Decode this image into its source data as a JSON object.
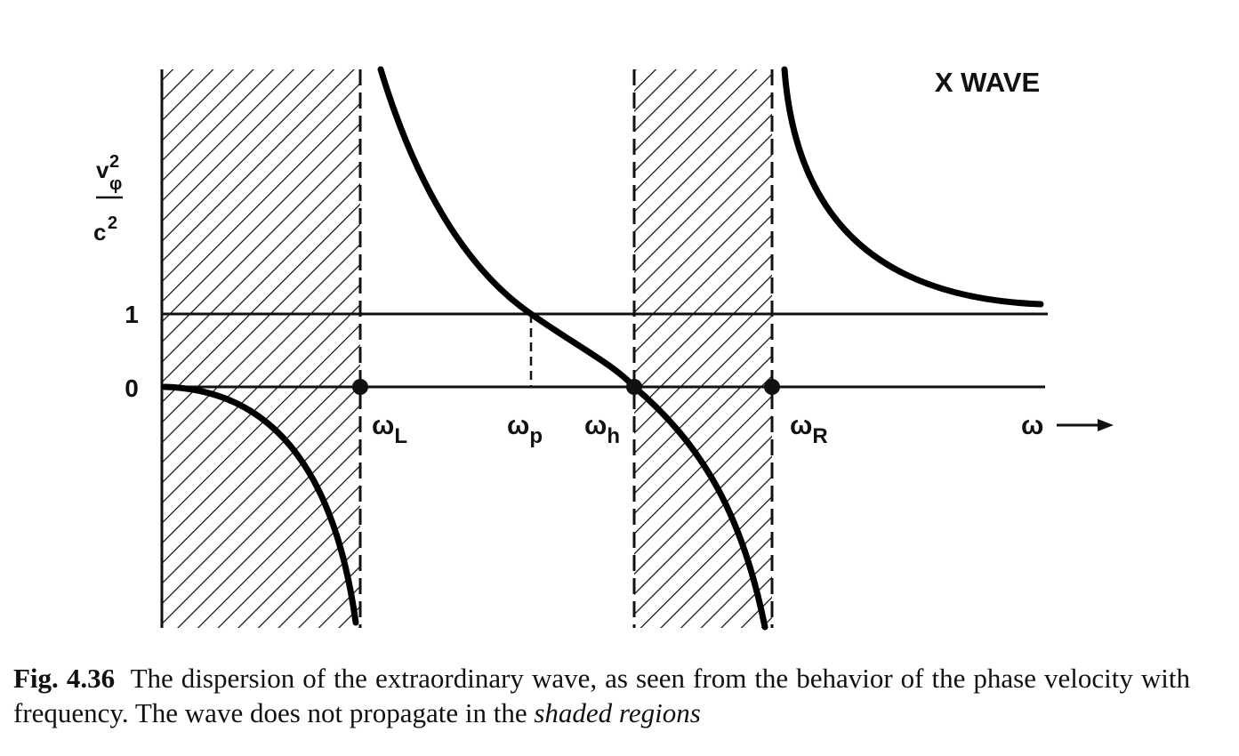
{
  "figure": {
    "title": "X WAVE",
    "y_label": {
      "numerator": "v",
      "numerator_sub": "φ",
      "numerator_sup": "2",
      "denominator": "c",
      "denominator_sup": "2"
    },
    "y_ticks": [
      "1",
      "0"
    ],
    "x_labels": [
      {
        "symbol": "ω",
        "sub": "L"
      },
      {
        "symbol": "ω",
        "sub": "p"
      },
      {
        "symbol": "ω",
        "sub": "h"
      },
      {
        "symbol": "ω",
        "sub": "R"
      }
    ],
    "x_axis": "ω"
  },
  "caption": {
    "label": "Fig. 4.36",
    "text": "The dispersion of the extraordinary wave, as seen from the behavior of the phase velocity with frequency. The wave does not propagate in the",
    "emphasis": "shaded regions"
  }
}
